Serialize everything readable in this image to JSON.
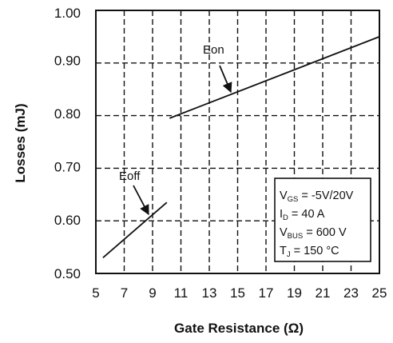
{
  "chart_data": {
    "type": "line",
    "xlabel": "Gate Resistance (Ω)",
    "ylabel": "Losses (mJ)",
    "xlim": [
      5,
      25
    ],
    "ylim": [
      0.5,
      1.0
    ],
    "x_ticks": [
      "5",
      "7",
      "9",
      "11",
      "13",
      "15",
      "17",
      "19",
      "21",
      "23",
      "25"
    ],
    "y_ticks": [
      "0.50",
      "0.60",
      "0.70",
      "0.80",
      "0.90",
      "1.00"
    ],
    "grid": true,
    "series": [
      {
        "name": "Eon",
        "x": [
          10.2,
          25
        ],
        "y": [
          0.795,
          0.95
        ]
      },
      {
        "name": "Eoff",
        "x": [
          5.5,
          10
        ],
        "y": [
          0.53,
          0.635
        ]
      }
    ],
    "annotations": [
      {
        "text": "Eon",
        "points_to_x": 14.8,
        "points_to_y": 0.84
      },
      {
        "text": "Eoff",
        "points_to_x": 8.9,
        "points_to_y": 0.605
      }
    ],
    "conditions_box": {
      "lines": [
        {
          "main": "V",
          "sub": "GS",
          "rest": " = -5V/20V"
        },
        {
          "main": "I",
          "sub": "D",
          "rest": " = 40 A"
        },
        {
          "main": "V",
          "sub": "BUS",
          "rest": " = 600 V"
        },
        {
          "main": "T",
          "sub": "J",
          "rest": " = 150 °C"
        }
      ]
    }
  }
}
